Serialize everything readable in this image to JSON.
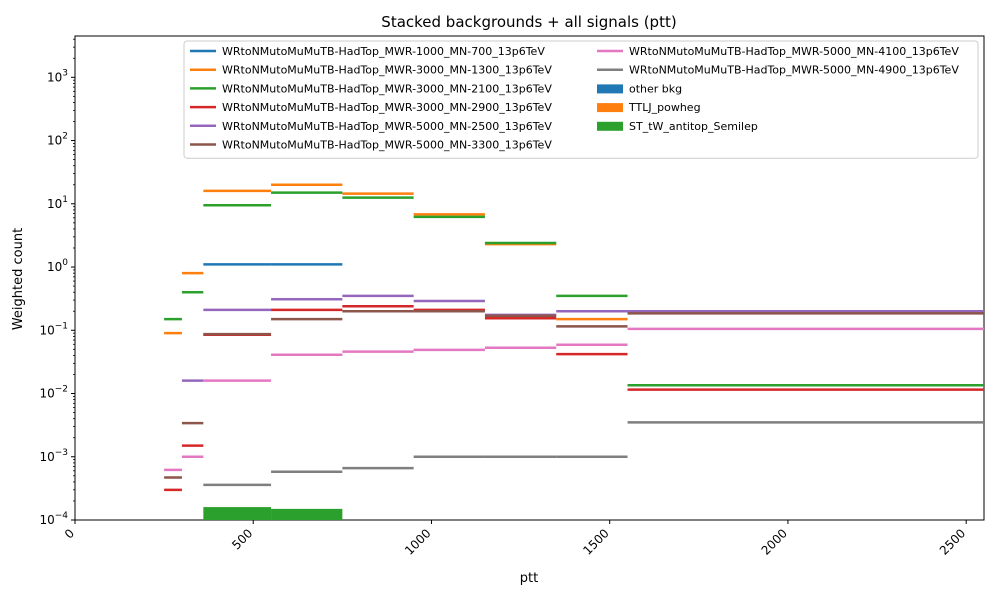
{
  "chart_data": {
    "type": "step",
    "title": "Stacked backgrounds + all signals (ptt)",
    "xlabel": "ptt",
    "ylabel": "Weighted count",
    "xlim": [
      0,
      2550
    ],
    "ylim": [
      0.0001,
      4500
    ],
    "yscale": "log",
    "grid": false,
    "legend_position": "top-right",
    "xticks": [
      0,
      500,
      1000,
      1500,
      2000,
      2500
    ],
    "xtick_labels": [
      "0",
      "500",
      "1000",
      "1500",
      "2000",
      "2500"
    ],
    "ytick_exponents": [
      -4,
      -3,
      -2,
      -1,
      0,
      1,
      2,
      3
    ],
    "ytick_base": "10",
    "bins": [
      [
        250,
        300
      ],
      [
        300,
        360
      ],
      [
        360,
        550
      ],
      [
        550,
        750
      ],
      [
        750,
        950
      ],
      [
        950,
        1150
      ],
      [
        1150,
        1350
      ],
      [
        1350,
        1550
      ],
      [
        1550,
        2550
      ]
    ],
    "stacked_backgrounds": [
      {
        "name": "other bkg",
        "color": "#1f77b4",
        "values": [
          0,
          0,
          0,
          0,
          0,
          0,
          0,
          0,
          0
        ]
      },
      {
        "name": "TTLJ_powheg",
        "color": "#ff7f0e",
        "values": [
          0,
          0,
          0,
          0,
          0,
          0,
          0,
          0,
          0
        ]
      },
      {
        "name": "ST_tW_antitop_Semilep",
        "color": "#2ca02c",
        "values": [
          0,
          0,
          0.00016,
          0.00015,
          0,
          0,
          0,
          0,
          0
        ]
      }
    ],
    "series": [
      {
        "name": "WRtoNMutoMuMuTB-HadTop_MWR-1000_MN-700_13p6TeV",
        "color": "#1f77b4",
        "values": [
          null,
          null,
          1.1,
          1.1,
          null,
          null,
          null,
          null,
          null
        ]
      },
      {
        "name": "WRtoNMutoMuMuTB-HadTop_MWR-3000_MN-1300_13p6TeV",
        "color": "#ff7f0e",
        "values": [
          0.09,
          0.8,
          16,
          20,
          14.5,
          6.8,
          2.3,
          0.15,
          null
        ]
      },
      {
        "name": "WRtoNMutoMuMuTB-HadTop_MWR-3000_MN-2100_13p6TeV",
        "color": "#2ca02c",
        "values": [
          0.15,
          0.4,
          9.5,
          15,
          12.5,
          6.2,
          2.4,
          0.35,
          0.0135
        ]
      },
      {
        "name": "WRtoNMutoMuMuTB-HadTop_MWR-3000_MN-2900_13p6TeV",
        "color": "#d62728",
        "values": [
          0.0003,
          0.0015,
          0.085,
          0.21,
          0.24,
          0.21,
          0.155,
          0.042,
          0.0115
        ]
      },
      {
        "name": "WRtoNMutoMuMuTB-HadTop_MWR-5000_MN-2500_13p6TeV",
        "color": "#9467bd",
        "values": [
          null,
          0.016,
          0.21,
          0.31,
          0.35,
          0.29,
          0.175,
          0.2,
          0.2
        ]
      },
      {
        "name": "WRtoNMutoMuMuTB-HadTop_MWR-5000_MN-3300_13p6TeV",
        "color": "#8c564b",
        "values": [
          0.00047,
          0.0034,
          0.087,
          0.15,
          0.2,
          0.2,
          0.17,
          0.115,
          0.185
        ]
      },
      {
        "name": "WRtoNMutoMuMuTB-HadTop_MWR-5000_MN-4100_13p6TeV",
        "color": "#e377c2",
        "values": [
          0.00062,
          0.001,
          0.016,
          0.041,
          0.046,
          0.049,
          0.053,
          0.059,
          0.105
        ]
      },
      {
        "name": "WRtoNMutoMuMuTB-HadTop_MWR-5000_MN-4900_13p6TeV",
        "color": "#7f7f7f",
        "values": [
          null,
          null,
          0.00036,
          0.00058,
          0.00066,
          0.001,
          0.001,
          0.001,
          0.0035
        ]
      }
    ],
    "legend_order": [
      [
        "series",
        0
      ],
      [
        "series",
        1
      ],
      [
        "series",
        2
      ],
      [
        "series",
        3
      ],
      [
        "series",
        4
      ],
      [
        "series",
        5
      ],
      [
        "series",
        6
      ],
      [
        "series",
        7
      ],
      [
        "stacked_backgrounds",
        0
      ],
      [
        "stacked_backgrounds",
        1
      ],
      [
        "stacked_backgrounds",
        2
      ]
    ]
  }
}
